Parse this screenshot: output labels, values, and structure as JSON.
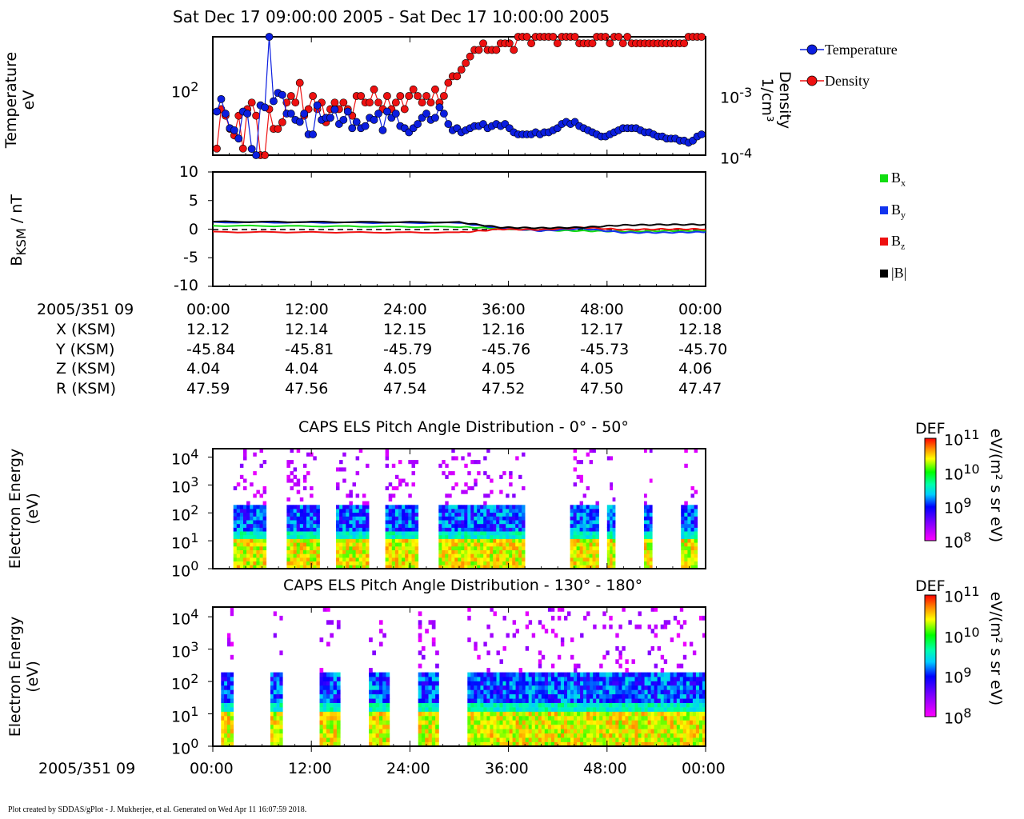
{
  "page_title": "Sat Dec 17 09:00:00 2005 - Sat Dec 17 10:00:00 2005",
  "footer": "Plot created by SDDAS/gPlot - J. Mukherjee, et al.  Generated on Wed Apr 11 16:07:59 2018.",
  "colors": {
    "temperature": "#0b1ee0",
    "density": "#ee1111",
    "bx": "#11dd11",
    "by": "#1133ee",
    "bz": "#ee1111",
    "btot": "#000000"
  },
  "chart_data": [
    {
      "type": "scatter",
      "name": "moments",
      "ylabel": [
        "Temperature",
        "eV"
      ],
      "y2label": [
        "Density",
        "1/cm³"
      ],
      "ytick_label": "10",
      "ytick_sup": "2",
      "y2tick_labels": [
        {
          "base": "10",
          "sup": "-3"
        },
        {
          "base": "10",
          "sup": "-4"
        }
      ],
      "x_minutes": [
        0,
        60
      ],
      "temperature_log10_ylim": [
        1.75,
        2.32
      ],
      "density_log10_ylim": [
        -4.0,
        -2.2
      ],
      "series": [
        {
          "name": "Temperature",
          "log10_values": [
            1.96,
            2.02,
            1.95,
            1.88,
            1.87,
            1.83,
            1.96,
            1.95,
            1.78,
            1.74,
            1.99,
            1.98,
            2.32,
            2.01,
            2.05,
            2.04,
            1.95,
            1.95,
            1.92,
            1.91,
            1.95,
            1.85,
            1.85,
            1.99,
            1.92,
            1.93,
            1.93,
            1.97,
            1.9,
            1.92,
            1.96,
            1.88,
            1.91,
            1.88,
            1.89,
            1.93,
            1.92,
            1.95,
            1.87,
            1.96,
            1.93,
            1.95,
            1.89,
            1.88,
            1.86,
            1.88,
            1.9,
            1.93,
            1.95,
            1.92,
            1.93,
            1.98,
            1.95,
            1.9,
            1.87,
            1.88,
            1.86,
            1.87,
            1.88,
            1.89,
            1.89,
            1.9,
            1.88,
            1.89,
            1.9,
            1.89,
            1.9,
            1.88,
            1.86,
            1.85,
            1.85,
            1.85,
            1.85,
            1.86,
            1.85,
            1.86,
            1.86,
            1.87,
            1.88,
            1.9,
            1.91,
            1.9,
            1.91,
            1.89,
            1.88,
            1.87,
            1.86,
            1.85,
            1.84,
            1.84,
            1.85,
            1.86,
            1.87,
            1.88,
            1.88,
            1.88,
            1.88,
            1.87,
            1.86,
            1.86,
            1.85,
            1.84,
            1.84,
            1.83,
            1.83,
            1.83,
            1.82,
            1.82,
            1.81,
            1.82,
            1.84,
            1.85
          ]
        },
        {
          "name": "Density",
          "log10_values": [
            -3.9,
            -3.3,
            -3.4,
            -3.6,
            -3.7,
            -3.4,
            -3.9,
            -3.3,
            -3.2,
            -3.4,
            -4.0,
            -4.0,
            -3.3,
            -3.6,
            -3.6,
            -3.5,
            -3.2,
            -3.1,
            -3.2,
            -2.9,
            -3.4,
            -3.3,
            -3.1,
            -3.3,
            -3.2,
            -3.5,
            -3.3,
            -3.2,
            -3.3,
            -3.2,
            -3.3,
            -3.4,
            -3.1,
            -3.1,
            -3.2,
            -3.2,
            -3.0,
            -3.2,
            -3.3,
            -3.1,
            -3.3,
            -3.2,
            -3.1,
            -3.3,
            -3.1,
            -3.0,
            -3.1,
            -3.2,
            -3.1,
            -3.2,
            -3.0,
            -3.2,
            -3.1,
            -2.9,
            -2.8,
            -2.8,
            -2.7,
            -2.6,
            -2.5,
            -2.4,
            -2.4,
            -2.3,
            -2.4,
            -2.4,
            -2.4,
            -2.3,
            -2.3,
            -2.3,
            -2.4,
            -2.2,
            -2.2,
            -2.2,
            -2.3,
            -2.2,
            -2.2,
            -2.2,
            -2.2,
            -2.2,
            -2.3,
            -2.2,
            -2.2,
            -2.2,
            -2.2,
            -2.3,
            -2.3,
            -2.3,
            -2.3,
            -2.2,
            -2.2,
            -2.2,
            -2.3,
            -2.2,
            -2.2,
            -2.3,
            -2.2,
            -2.3,
            -2.3,
            -2.3,
            -2.3,
            -2.3,
            -2.3,
            -2.3,
            -2.3,
            -2.3,
            -2.3,
            -2.3,
            -2.3,
            -2.3,
            -2.2,
            -2.2,
            -2.2,
            -2.2
          ]
        }
      ],
      "legend": [
        "Temperature",
        "Density"
      ],
      "legend_position": "right"
    },
    {
      "type": "line",
      "name": "magnetic_field",
      "ylabel_main": "B",
      "ylabel_sub": "KSM",
      "ylabel_rest": " / nT",
      "ylim": [
        -10,
        10
      ],
      "yticks": [
        "10",
        "5",
        "0",
        "-5",
        "-10"
      ],
      "ytick_values": [
        10,
        5,
        0,
        -5,
        -10
      ],
      "segments_minutes": [
        0,
        30,
        35,
        40,
        45,
        50,
        55,
        60
      ],
      "series": [
        {
          "name": "Bx",
          "values": [
            0.6,
            0.4,
            0.1,
            -0.2,
            -0.3,
            -0.4,
            -0.3,
            -0.3
          ]
        },
        {
          "name": "By",
          "values": [
            1.2,
            1.1,
            0.2,
            -0.3,
            0.1,
            -0.6,
            -0.6,
            -0.5
          ]
        },
        {
          "name": "Bz",
          "values": [
            -0.5,
            -0.6,
            0.0,
            -0.1,
            0.3,
            -0.1,
            0.0,
            0.0
          ]
        },
        {
          "name": "|B|",
          "values": [
            1.3,
            1.2,
            0.3,
            0.2,
            0.3,
            0.7,
            0.8,
            0.8
          ]
        }
      ],
      "legend": [
        {
          "base": "B",
          "sub": "x"
        },
        {
          "base": "B",
          "sub": "y"
        },
        {
          "base": "B",
          "sub": "z"
        },
        {
          "base": "|B|",
          "sub": ""
        }
      ],
      "legend_position": "right"
    },
    {
      "type": "heatmap",
      "name": "pad_0_50",
      "title": "CAPS ELS Pitch Angle Distribution - 0° - 50°",
      "ylabel": [
        "Electron Energy",
        "(eV)"
      ],
      "colorbar_title": "DEF",
      "colorbar_units": "eV/(m² s sr eV)",
      "colorbar_ticks": [
        {
          "base": "10",
          "sup": "11"
        },
        {
          "base": "10",
          "sup": "10"
        },
        {
          "base": "10",
          "sup": "9"
        },
        {
          "base": "10",
          "sup": "8"
        }
      ],
      "yticks": [
        {
          "base": "10",
          "sup": "4"
        },
        {
          "base": "10",
          "sup": "3"
        },
        {
          "base": "10",
          "sup": "2"
        },
        {
          "base": "10",
          "sup": "1"
        },
        {
          "base": "10",
          "sup": "0"
        }
      ],
      "log10_energy_range": [
        0,
        4.3
      ],
      "log10_def_range": [
        8,
        11
      ],
      "data_bands_minutes": [
        [
          2.5,
          6.5
        ],
        [
          9,
          13
        ],
        [
          15,
          19
        ],
        [
          21,
          25
        ],
        [
          27.5,
          38
        ],
        [
          43.5,
          47
        ],
        [
          48,
          49
        ],
        [
          52.5,
          53.5
        ],
        [
          57,
          59
        ]
      ]
    },
    {
      "type": "heatmap",
      "name": "pad_130_180",
      "title": "CAPS ELS Pitch Angle Distribution - 130° - 180°",
      "ylabel": [
        "Electron Energy",
        "(eV)"
      ],
      "colorbar_title": "DEF",
      "colorbar_units": "eV/(m² s sr eV)",
      "colorbar_ticks": [
        {
          "base": "10",
          "sup": "11"
        },
        {
          "base": "10",
          "sup": "10"
        },
        {
          "base": "10",
          "sup": "9"
        },
        {
          "base": "10",
          "sup": "8"
        }
      ],
      "yticks": [
        {
          "base": "10",
          "sup": "4"
        },
        {
          "base": "10",
          "sup": "3"
        },
        {
          "base": "10",
          "sup": "2"
        },
        {
          "base": "10",
          "sup": "1"
        },
        {
          "base": "10",
          "sup": "0"
        }
      ],
      "log10_energy_range": [
        0,
        4.3
      ],
      "log10_def_range": [
        8,
        11
      ],
      "data_bands_minutes": [
        [
          1,
          2.5
        ],
        [
          7,
          8.5
        ],
        [
          13,
          15.5
        ],
        [
          19,
          21.5
        ],
        [
          25,
          27.5
        ],
        [
          31,
          60
        ]
      ]
    }
  ],
  "ephemeris": {
    "header": "2005/351 09",
    "times": [
      "00:00",
      "12:00",
      "24:00",
      "36:00",
      "48:00",
      "00:00"
    ],
    "rows": [
      {
        "label": "X (KSM)",
        "values": [
          "12.12",
          "12.14",
          "12.15",
          "12.16",
          "12.17",
          "12.18"
        ]
      },
      {
        "label": "Y (KSM)",
        "values": [
          "-45.84",
          "-45.81",
          "-45.79",
          "-45.76",
          "-45.73",
          "-45.70"
        ]
      },
      {
        "label": "Z (KSM)",
        "values": [
          "4.04",
          "4.04",
          "4.05",
          "4.05",
          "4.05",
          "4.06"
        ]
      },
      {
        "label": "R (KSM)",
        "values": [
          "47.59",
          "47.56",
          "47.54",
          "47.52",
          "47.50",
          "47.47"
        ]
      }
    ]
  },
  "bottom_axis": {
    "header": "2005/351 09",
    "times": [
      "00:00",
      "12:00",
      "24:00",
      "36:00",
      "48:00",
      "00:00"
    ]
  }
}
